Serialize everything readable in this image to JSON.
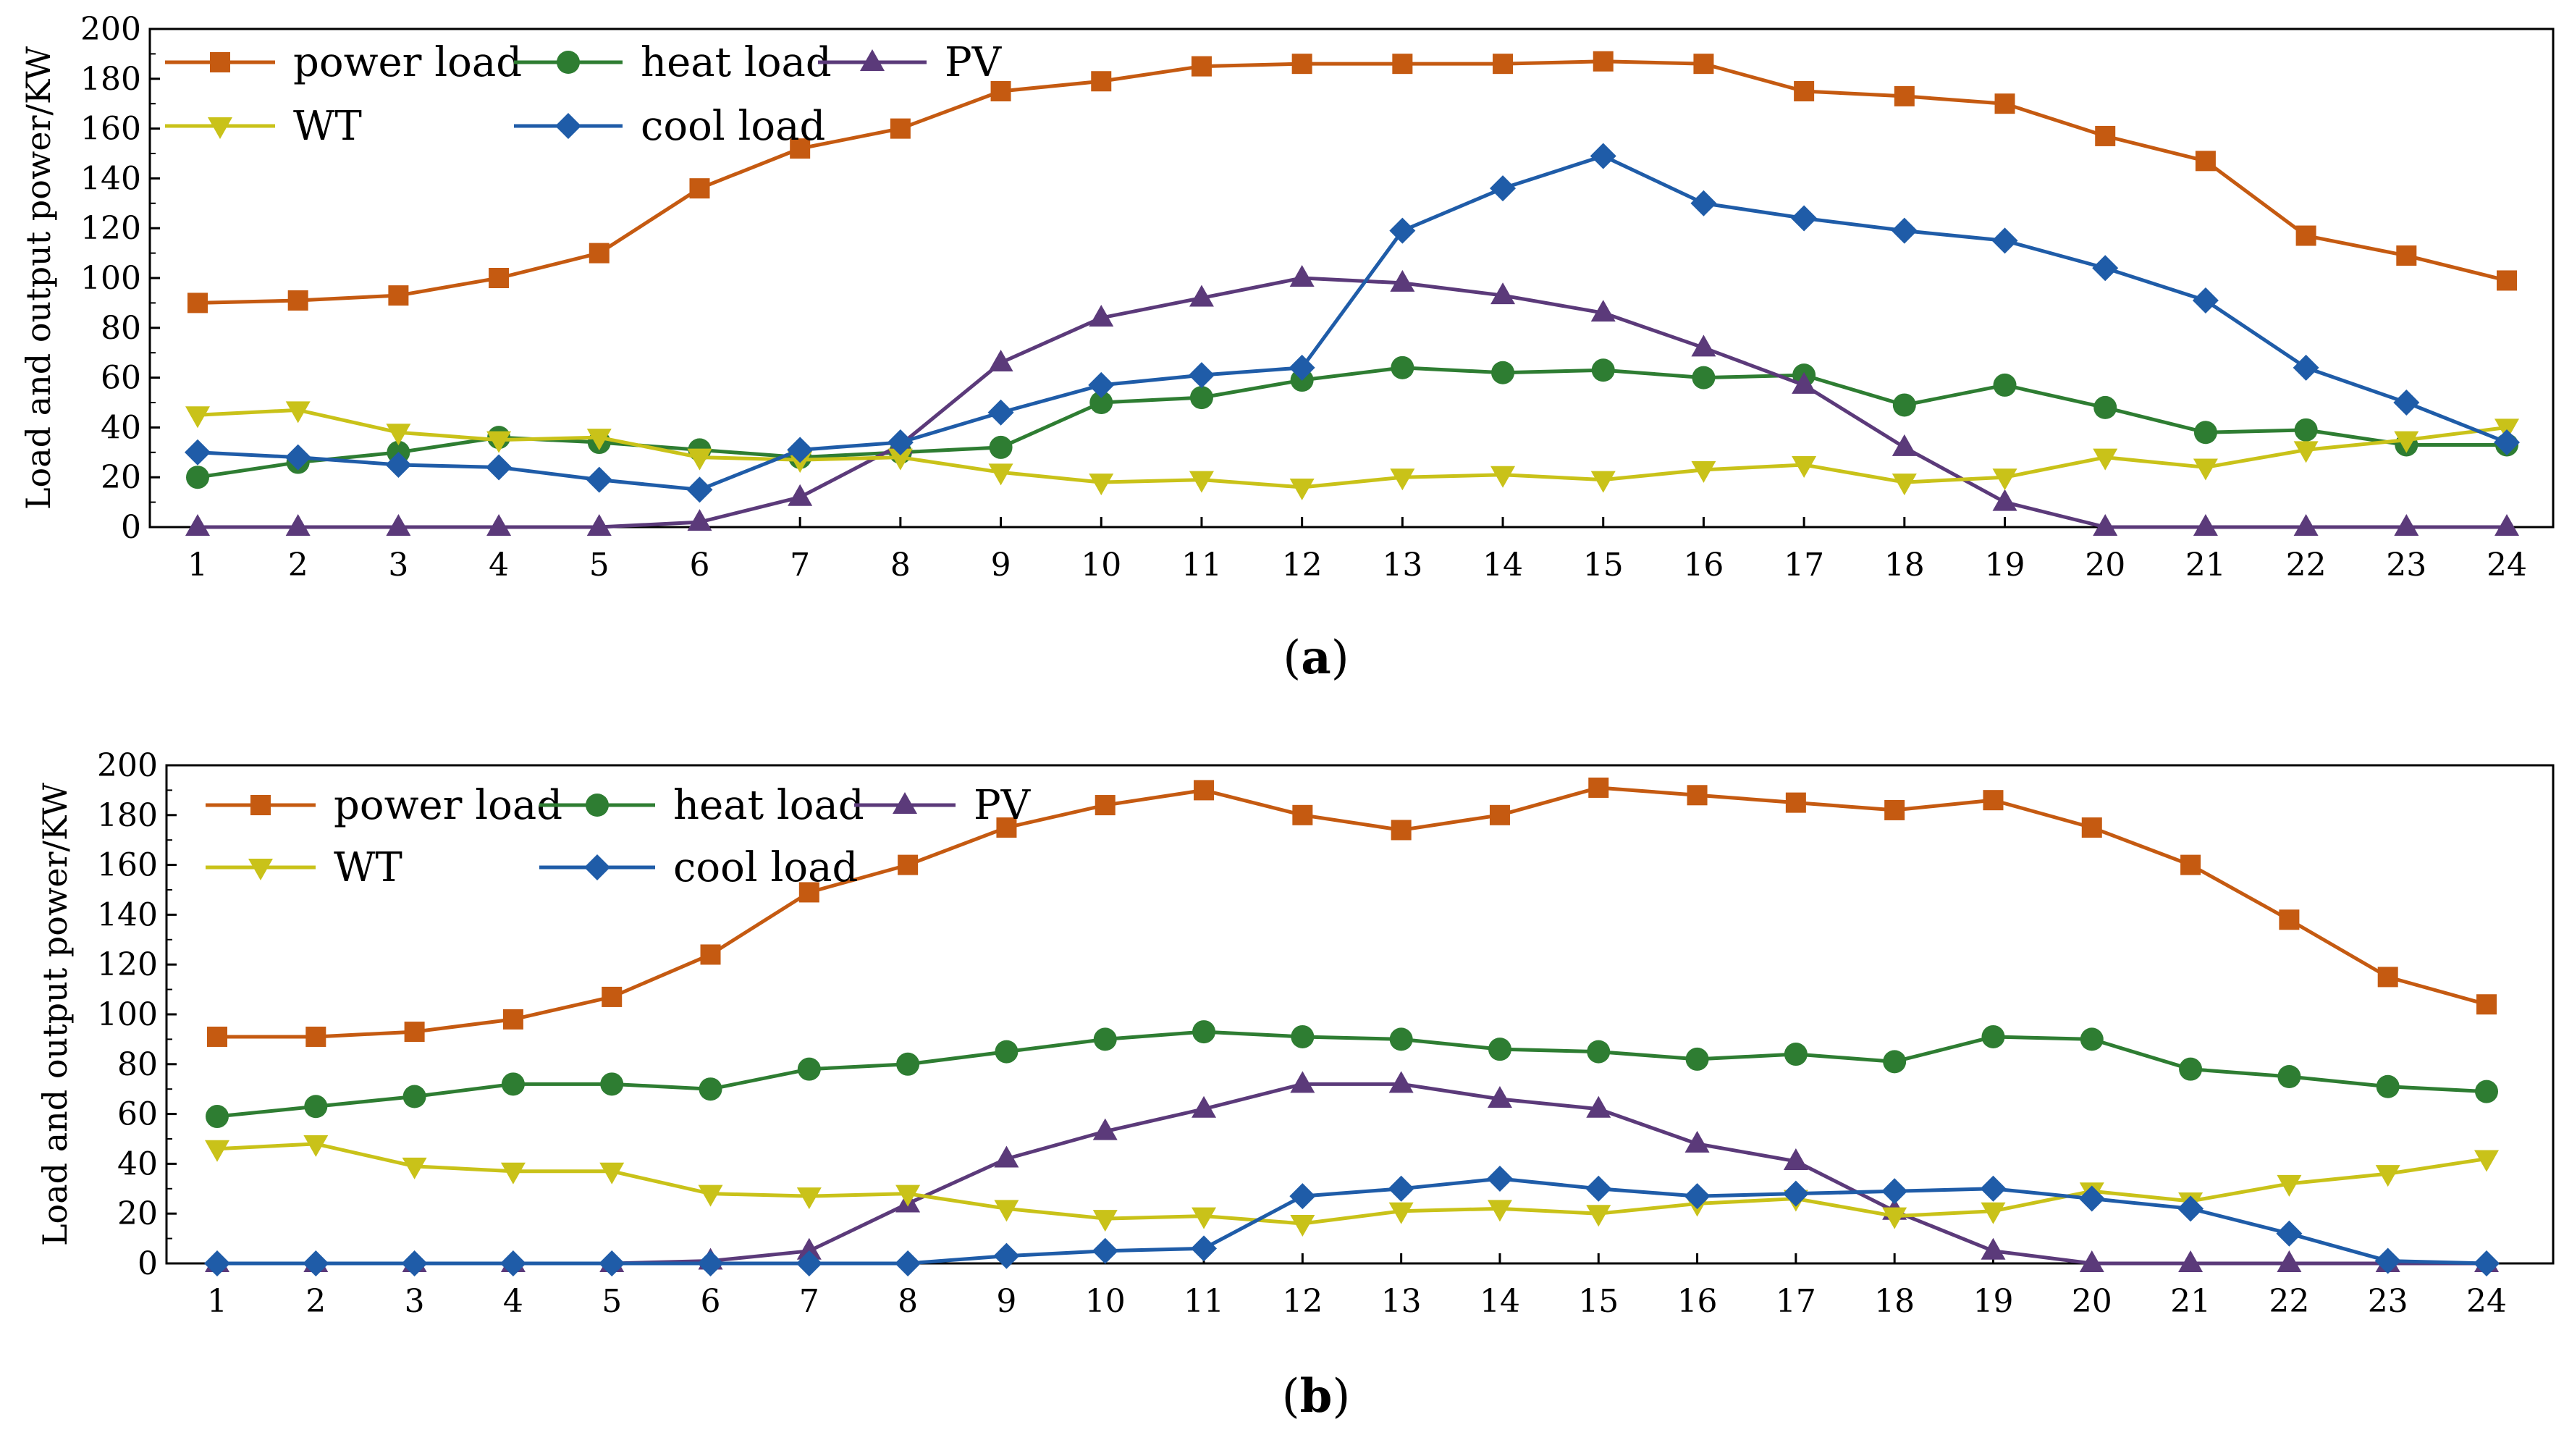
{
  "chart_data": [
    {
      "type": "line",
      "panel_label": "a",
      "ylabel": "Load and output power/KW",
      "xlabel": "",
      "ylim": [
        0,
        200
      ],
      "yticks": [
        0,
        20,
        40,
        60,
        80,
        100,
        120,
        140,
        160,
        180,
        200
      ],
      "x": [
        1,
        2,
        3,
        4,
        5,
        6,
        7,
        8,
        9,
        10,
        11,
        12,
        13,
        14,
        15,
        16,
        17,
        18,
        19,
        20,
        21,
        22,
        23,
        24
      ],
      "legend_position": "top-left",
      "series": [
        {
          "name": "power load",
          "color": "#C55A11",
          "marker": "square",
          "values": [
            90,
            91,
            93,
            100,
            110,
            136,
            152,
            160,
            175,
            179,
            185,
            186,
            186,
            186,
            187,
            186,
            175,
            173,
            170,
            157,
            147,
            117,
            109,
            99
          ]
        },
        {
          "name": "heat load",
          "color": "#2E7D32",
          "marker": "circle",
          "values": [
            20,
            26,
            30,
            36,
            34,
            31,
            28,
            30,
            32,
            50,
            52,
            59,
            64,
            62,
            63,
            60,
            61,
            49,
            57,
            48,
            38,
            39,
            33,
            33
          ]
        },
        {
          "name": "PV",
          "color": "#5B3A7A",
          "marker": "triangle-up",
          "values": [
            0,
            0,
            0,
            0,
            0,
            2,
            12,
            33,
            66,
            84,
            92,
            100,
            98,
            93,
            86,
            72,
            57,
            32,
            10,
            0,
            0,
            0,
            0,
            0
          ]
        },
        {
          "name": "WT",
          "color": "#C9C219",
          "marker": "triangle-down",
          "values": [
            45,
            47,
            38,
            35,
            36,
            28,
            27,
            28,
            22,
            18,
            19,
            16,
            20,
            21,
            19,
            23,
            25,
            18,
            20,
            28,
            24,
            31,
            35,
            40
          ]
        },
        {
          "name": "cool load",
          "color": "#1F5CA8",
          "marker": "diamond",
          "values": [
            30,
            28,
            25,
            24,
            19,
            15,
            31,
            34,
            46,
            57,
            61,
            64,
            119,
            136,
            149,
            130,
            124,
            119,
            115,
            104,
            91,
            64,
            50,
            34
          ]
        }
      ]
    },
    {
      "type": "line",
      "panel_label": "b",
      "ylabel": "Load and output power/KW",
      "xlabel": "",
      "ylim": [
        0,
        200
      ],
      "yticks": [
        0,
        20,
        40,
        60,
        80,
        100,
        120,
        140,
        160,
        180,
        200
      ],
      "x": [
        1,
        2,
        3,
        4,
        5,
        6,
        7,
        8,
        9,
        10,
        11,
        12,
        13,
        14,
        15,
        16,
        17,
        18,
        19,
        20,
        21,
        22,
        23,
        24
      ],
      "legend_position": "top-left",
      "series": [
        {
          "name": "power load",
          "color": "#C55A11",
          "marker": "square",
          "values": [
            91,
            91,
            93,
            98,
            107,
            124,
            149,
            160,
            175,
            184,
            190,
            180,
            174,
            180,
            191,
            188,
            185,
            182,
            186,
            175,
            160,
            138,
            115,
            104
          ]
        },
        {
          "name": "heat load",
          "color": "#2E7D32",
          "marker": "circle",
          "values": [
            59,
            63,
            67,
            72,
            72,
            70,
            78,
            80,
            85,
            90,
            93,
            91,
            90,
            86,
            85,
            82,
            84,
            81,
            91,
            90,
            78,
            75,
            71,
            69
          ]
        },
        {
          "name": "PV",
          "color": "#5B3A7A",
          "marker": "triangle-up",
          "values": [
            0,
            0,
            0,
            0,
            0,
            1,
            5,
            24,
            42,
            53,
            62,
            72,
            72,
            66,
            62,
            48,
            41,
            21,
            5,
            0,
            0,
            0,
            0,
            0
          ]
        },
        {
          "name": "WT",
          "color": "#C9C219",
          "marker": "triangle-down",
          "values": [
            46,
            48,
            39,
            37,
            37,
            28,
            27,
            28,
            22,
            18,
            19,
            16,
            21,
            22,
            20,
            24,
            26,
            19,
            21,
            29,
            25,
            32,
            36,
            42
          ]
        },
        {
          "name": "cool load",
          "color": "#1F5CA8",
          "marker": "diamond",
          "values": [
            0,
            0,
            0,
            0,
            0,
            0,
            0,
            0,
            3,
            5,
            6,
            27,
            30,
            34,
            30,
            27,
            28,
            29,
            30,
            26,
            22,
            12,
            1,
            0
          ]
        }
      ]
    }
  ]
}
